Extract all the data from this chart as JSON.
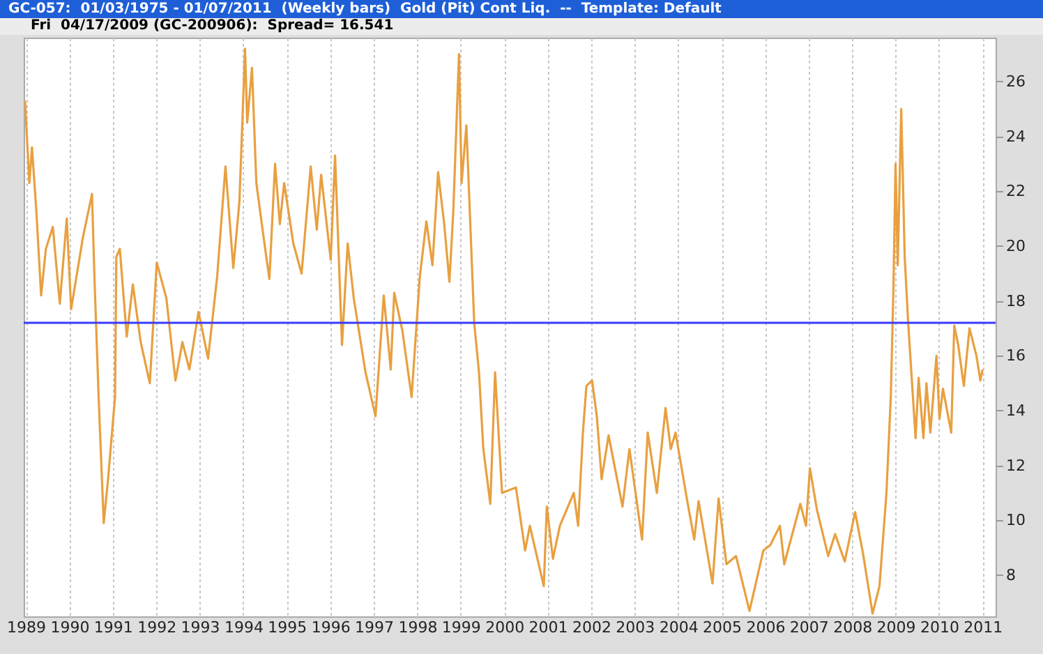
{
  "chart_data": {
    "type": "line",
    "title": "GC-057:  01/03/1975 - 01/07/2011  (Weekly bars)  Gold (Pit) Cont Liq.  --  Template: Default",
    "subtitle": "Fri  04/17/2009 (GC-200906):  Spread= 16.541",
    "x": [
      1988.98,
      1989.08,
      1989.14,
      1989.24,
      1989.35,
      1989.46,
      1989.62,
      1989.78,
      1989.94,
      1990.04,
      1990.31,
      1990.52,
      1990.58,
      1990.68,
      1990.79,
      1990.89,
      1991.05,
      1991.08,
      1991.16,
      1991.32,
      1991.46,
      1991.64,
      1991.85,
      1992.01,
      1992.23,
      1992.44,
      1992.6,
      1992.76,
      1992.97,
      1993.19,
      1993.4,
      1993.59,
      1993.77,
      1993.91,
      1994.04,
      1994.09,
      1994.2,
      1994.3,
      1994.46,
      1994.6,
      1994.73,
      1994.84,
      1994.94,
      1995.15,
      1995.34,
      1995.55,
      1995.69,
      1995.79,
      1996.01,
      1996.11,
      1996.27,
      1996.4,
      1996.54,
      1996.81,
      1997.04,
      1997.23,
      1997.39,
      1997.47,
      1997.66,
      1997.87,
      1998.06,
      1998.21,
      1998.35,
      1998.48,
      1998.62,
      1998.74,
      1998.83,
      1998.96,
      1999.02,
      1999.13,
      1999.2,
      1999.31,
      1999.42,
      1999.52,
      1999.68,
      1999.79,
      1999.95,
      2000.27,
      2000.48,
      2000.59,
      2000.91,
      2000.98,
      2001.12,
      2001.28,
      2001.6,
      2001.7,
      2001.81,
      2001.89,
      2002.02,
      2002.13,
      2002.24,
      2002.4,
      2002.72,
      2002.88,
      2003.17,
      2003.3,
      2003.51,
      2003.71,
      2003.83,
      2003.94,
      2004.21,
      2004.37,
      2004.47,
      2004.79,
      2004.93,
      2005.11,
      2005.33,
      2005.64,
      2005.96,
      2006.12,
      2006.34,
      2006.44,
      2006.81,
      2006.94,
      2007.03,
      2007.19,
      2007.45,
      2007.61,
      2007.83,
      2008.07,
      2008.25,
      2008.47,
      2008.63,
      2008.79,
      2008.89,
      2008.95,
      2009.0,
      2009.05,
      2009.13,
      2009.21,
      2009.29,
      2009.46,
      2009.53,
      2009.64,
      2009.71,
      2009.8,
      2009.94,
      2010.01,
      2010.09,
      2010.28,
      2010.35,
      2010.44,
      2010.57,
      2010.7,
      2010.86,
      2010.95,
      2011.0
    ],
    "series": [
      {
        "color": "#e8a040",
        "values": [
          25.3,
          22.3,
          23.6,
          21.3,
          18.2,
          19.9,
          20.7,
          17.9,
          21.0,
          17.7,
          20.3,
          21.9,
          18.7,
          14.2,
          9.9,
          11.5,
          14.5,
          19.6,
          19.9,
          16.7,
          18.6,
          16.5,
          15.0,
          19.4,
          18.1,
          15.1,
          16.5,
          15.5,
          17.6,
          15.9,
          18.9,
          22.9,
          19.2,
          21.6,
          27.2,
          24.5,
          26.5,
          22.3,
          20.4,
          18.8,
          23.0,
          20.8,
          22.3,
          20.1,
          19.0,
          22.9,
          20.6,
          22.6,
          19.5,
          23.3,
          16.4,
          20.1,
          18.1,
          15.4,
          13.8,
          18.2,
          15.5,
          18.3,
          16.9,
          14.5,
          18.9,
          20.9,
          19.3,
          22.7,
          20.8,
          18.7,
          21.3,
          27.0,
          22.3,
          24.4,
          21.6,
          17.2,
          15.4,
          12.6,
          10.6,
          15.4,
          11.0,
          11.2,
          8.9,
          9.8,
          7.6,
          10.5,
          8.6,
          9.8,
          11.0,
          9.8,
          13.2,
          14.9,
          15.1,
          13.8,
          11.5,
          13.1,
          10.5,
          12.6,
          9.3,
          13.2,
          11.0,
          14.1,
          12.6,
          13.2,
          10.7,
          9.3,
          10.7,
          7.7,
          10.8,
          8.4,
          8.7,
          6.7,
          8.9,
          9.1,
          9.8,
          8.4,
          10.6,
          9.8,
          11.9,
          10.4,
          8.7,
          9.5,
          8.5,
          10.3,
          8.8,
          6.6,
          7.6,
          11.0,
          14.5,
          18.4,
          23.0,
          19.3,
          25.0,
          19.6,
          17.2,
          13.0,
          15.2,
          13.0,
          15.0,
          13.2,
          16.0,
          13.7,
          14.8,
          13.2,
          17.1,
          16.4,
          14.9,
          17.0,
          16.0,
          15.1,
          15.5
        ]
      }
    ],
    "ref_lines": [
      {
        "axis": "y",
        "value": 17.2,
        "color": "#3a3aff"
      }
    ],
    "xlim": [
      1988.95,
      2011.3
    ],
    "xticks": [
      1989,
      1990,
      1991,
      1992,
      1993,
      1994,
      1995,
      1996,
      1997,
      1998,
      1999,
      2000,
      2001,
      2002,
      2003,
      2004,
      2005,
      2006,
      2007,
      2008,
      2009,
      2010,
      2011
    ],
    "ylim": [
      6.5,
      27.6
    ],
    "yticks": [
      8,
      10,
      12,
      14,
      16,
      18,
      20,
      22,
      24,
      26
    ],
    "grid": "x"
  }
}
